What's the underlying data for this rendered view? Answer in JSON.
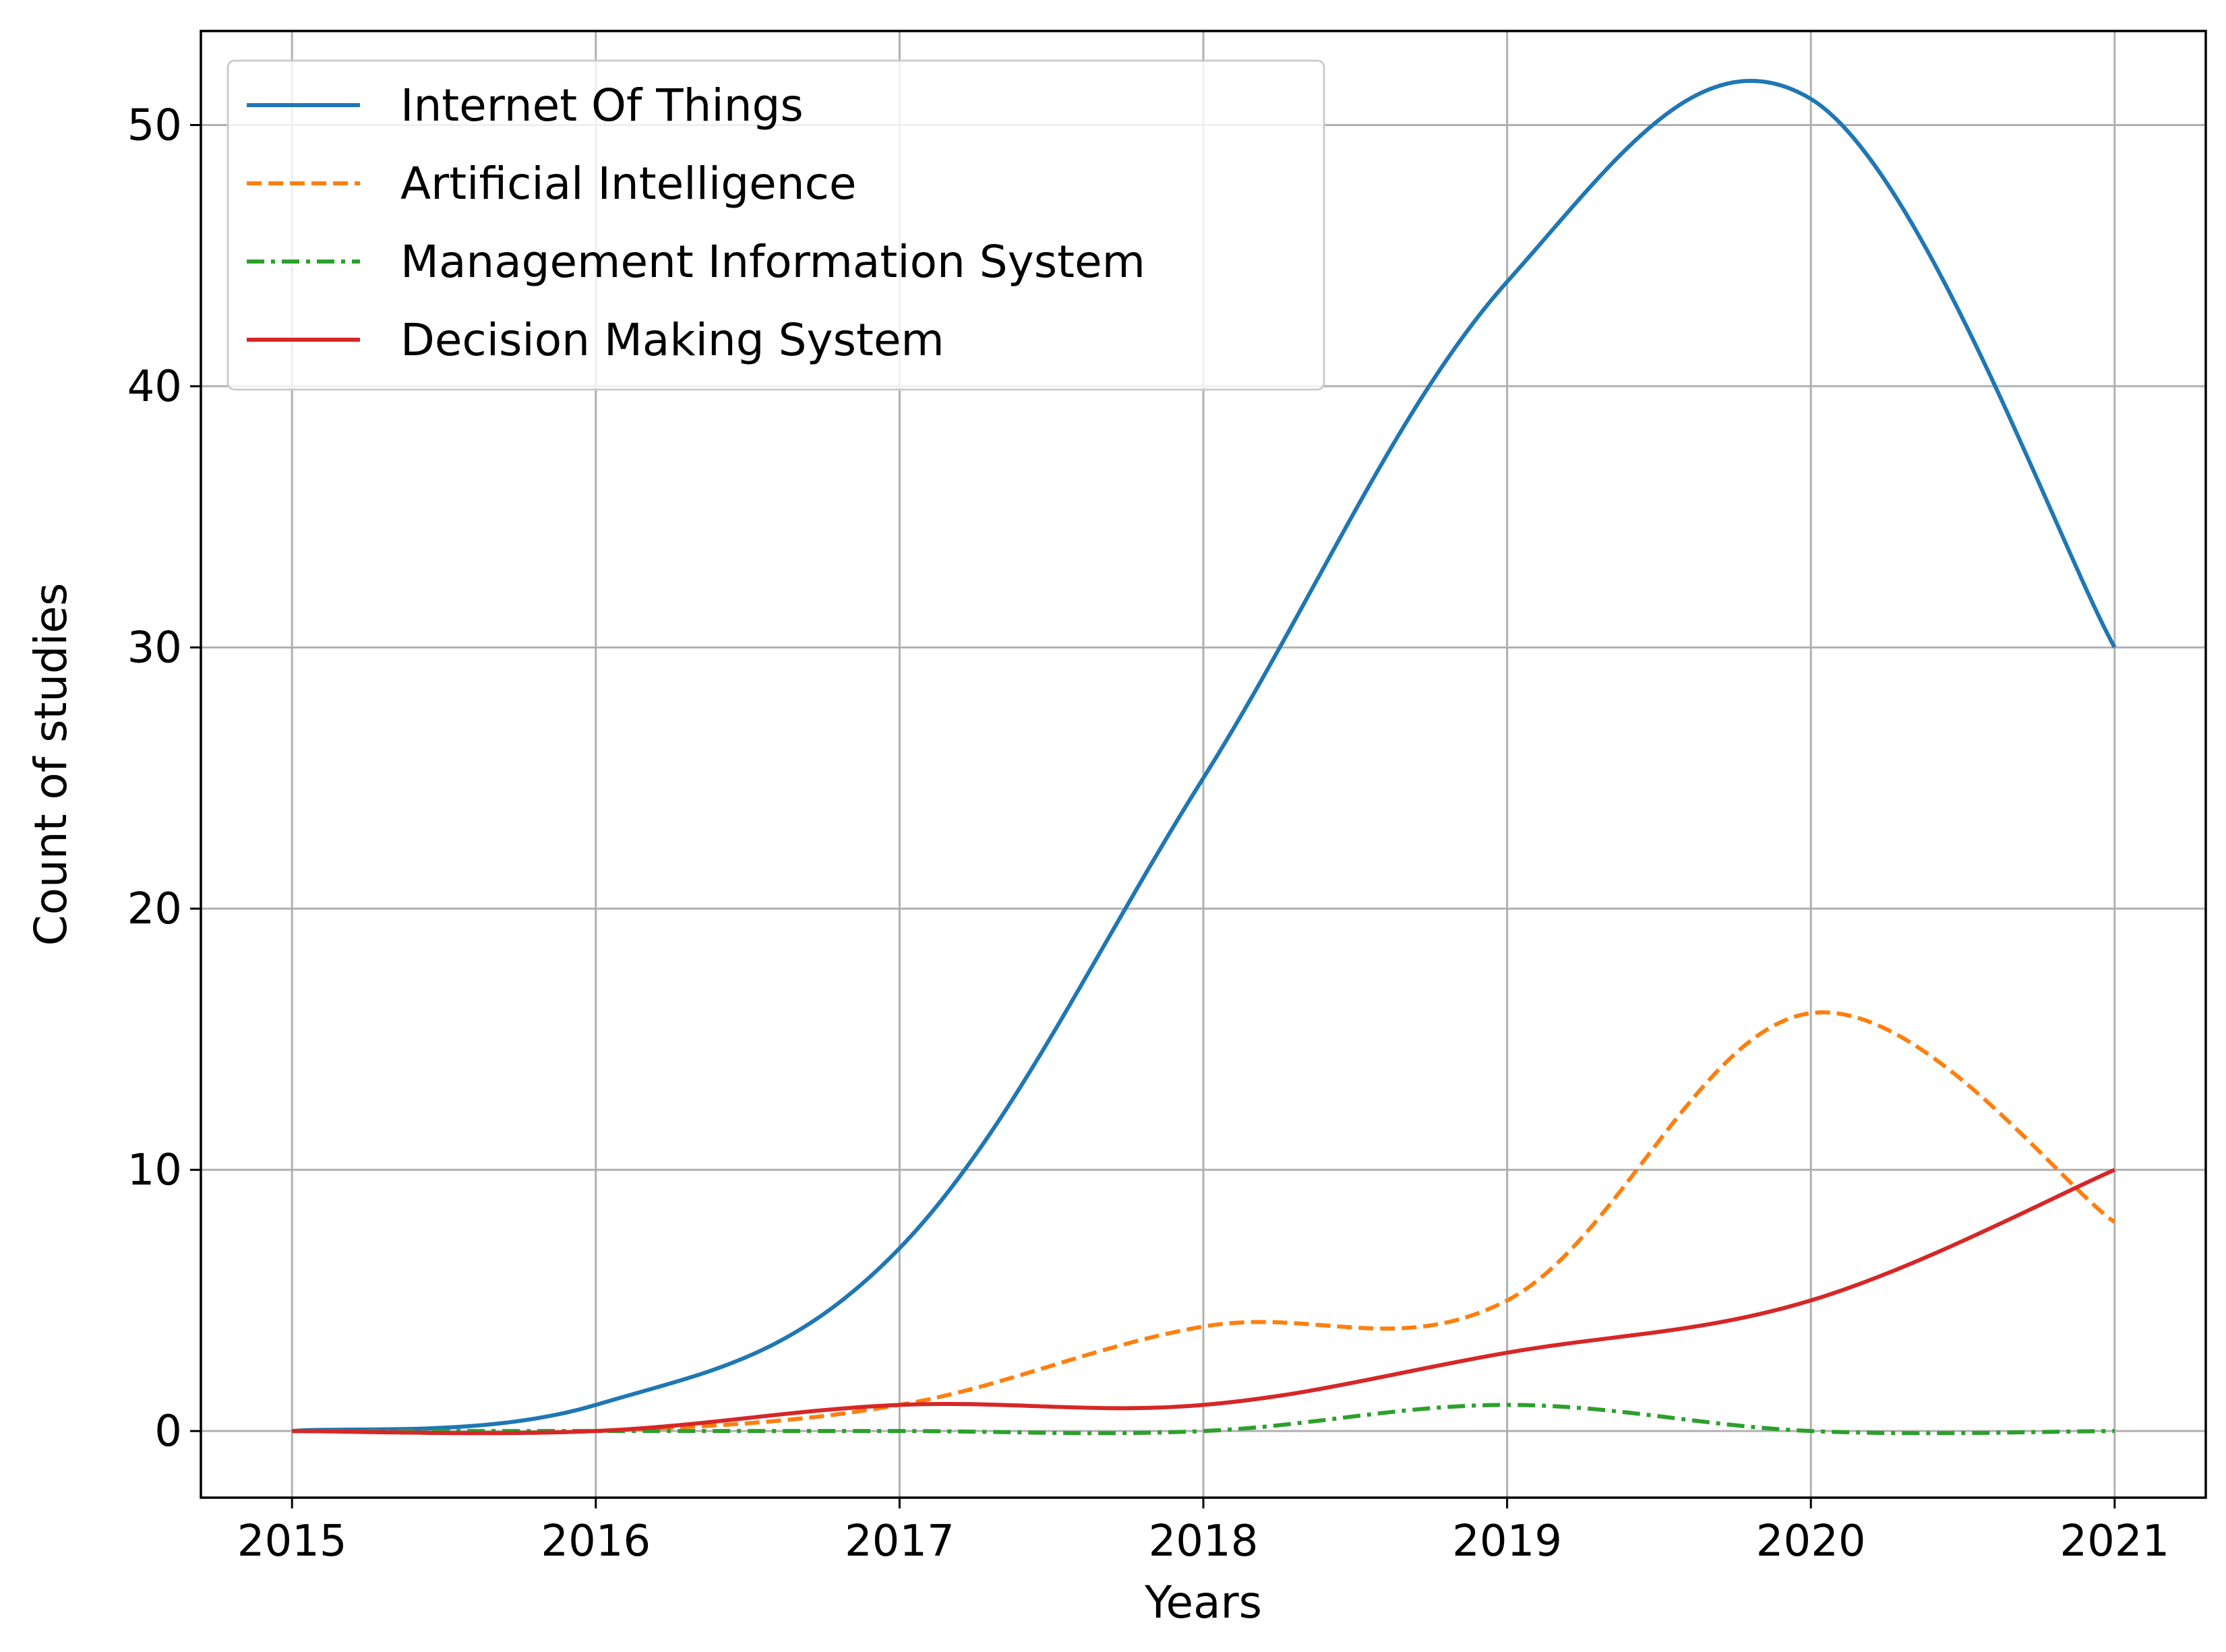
{
  "chart_data": {
    "type": "line",
    "title": "",
    "xlabel": "Years",
    "ylabel": "Count of studies",
    "x": [
      2015,
      2016,
      2017,
      2018,
      2019,
      2020,
      2021
    ],
    "xlim": [
      2014.7,
      2021.3
    ],
    "ylim": [
      -2.55,
      53.6
    ],
    "xticks": [
      "2015",
      "2016",
      "2017",
      "2018",
      "2019",
      "2020",
      "2021"
    ],
    "yticks": [
      "0",
      "10",
      "20",
      "30",
      "40",
      "50"
    ],
    "ytick_values": [
      0,
      10,
      20,
      30,
      40,
      50
    ],
    "grid": true,
    "legend_position": "top-left",
    "series": [
      {
        "name": "Internet Of Things",
        "values": [
          0,
          1,
          7,
          25,
          44,
          51,
          30
        ],
        "color": "#1f77b4",
        "style": "solid"
      },
      {
        "name": "Artificial Intelligence",
        "values": [
          0,
          0,
          1,
          4,
          5,
          16,
          8
        ],
        "color": "#ff7f0e",
        "style": "dashed"
      },
      {
        "name": "Management Information System",
        "values": [
          0,
          0,
          0,
          0,
          1,
          0,
          0
        ],
        "color": "#2ca02c",
        "style": "dashdot"
      },
      {
        "name": "Decision Making System",
        "values": [
          0,
          0,
          1,
          1,
          3,
          5,
          10
        ],
        "color": "#d62728",
        "style": "solid"
      }
    ]
  }
}
